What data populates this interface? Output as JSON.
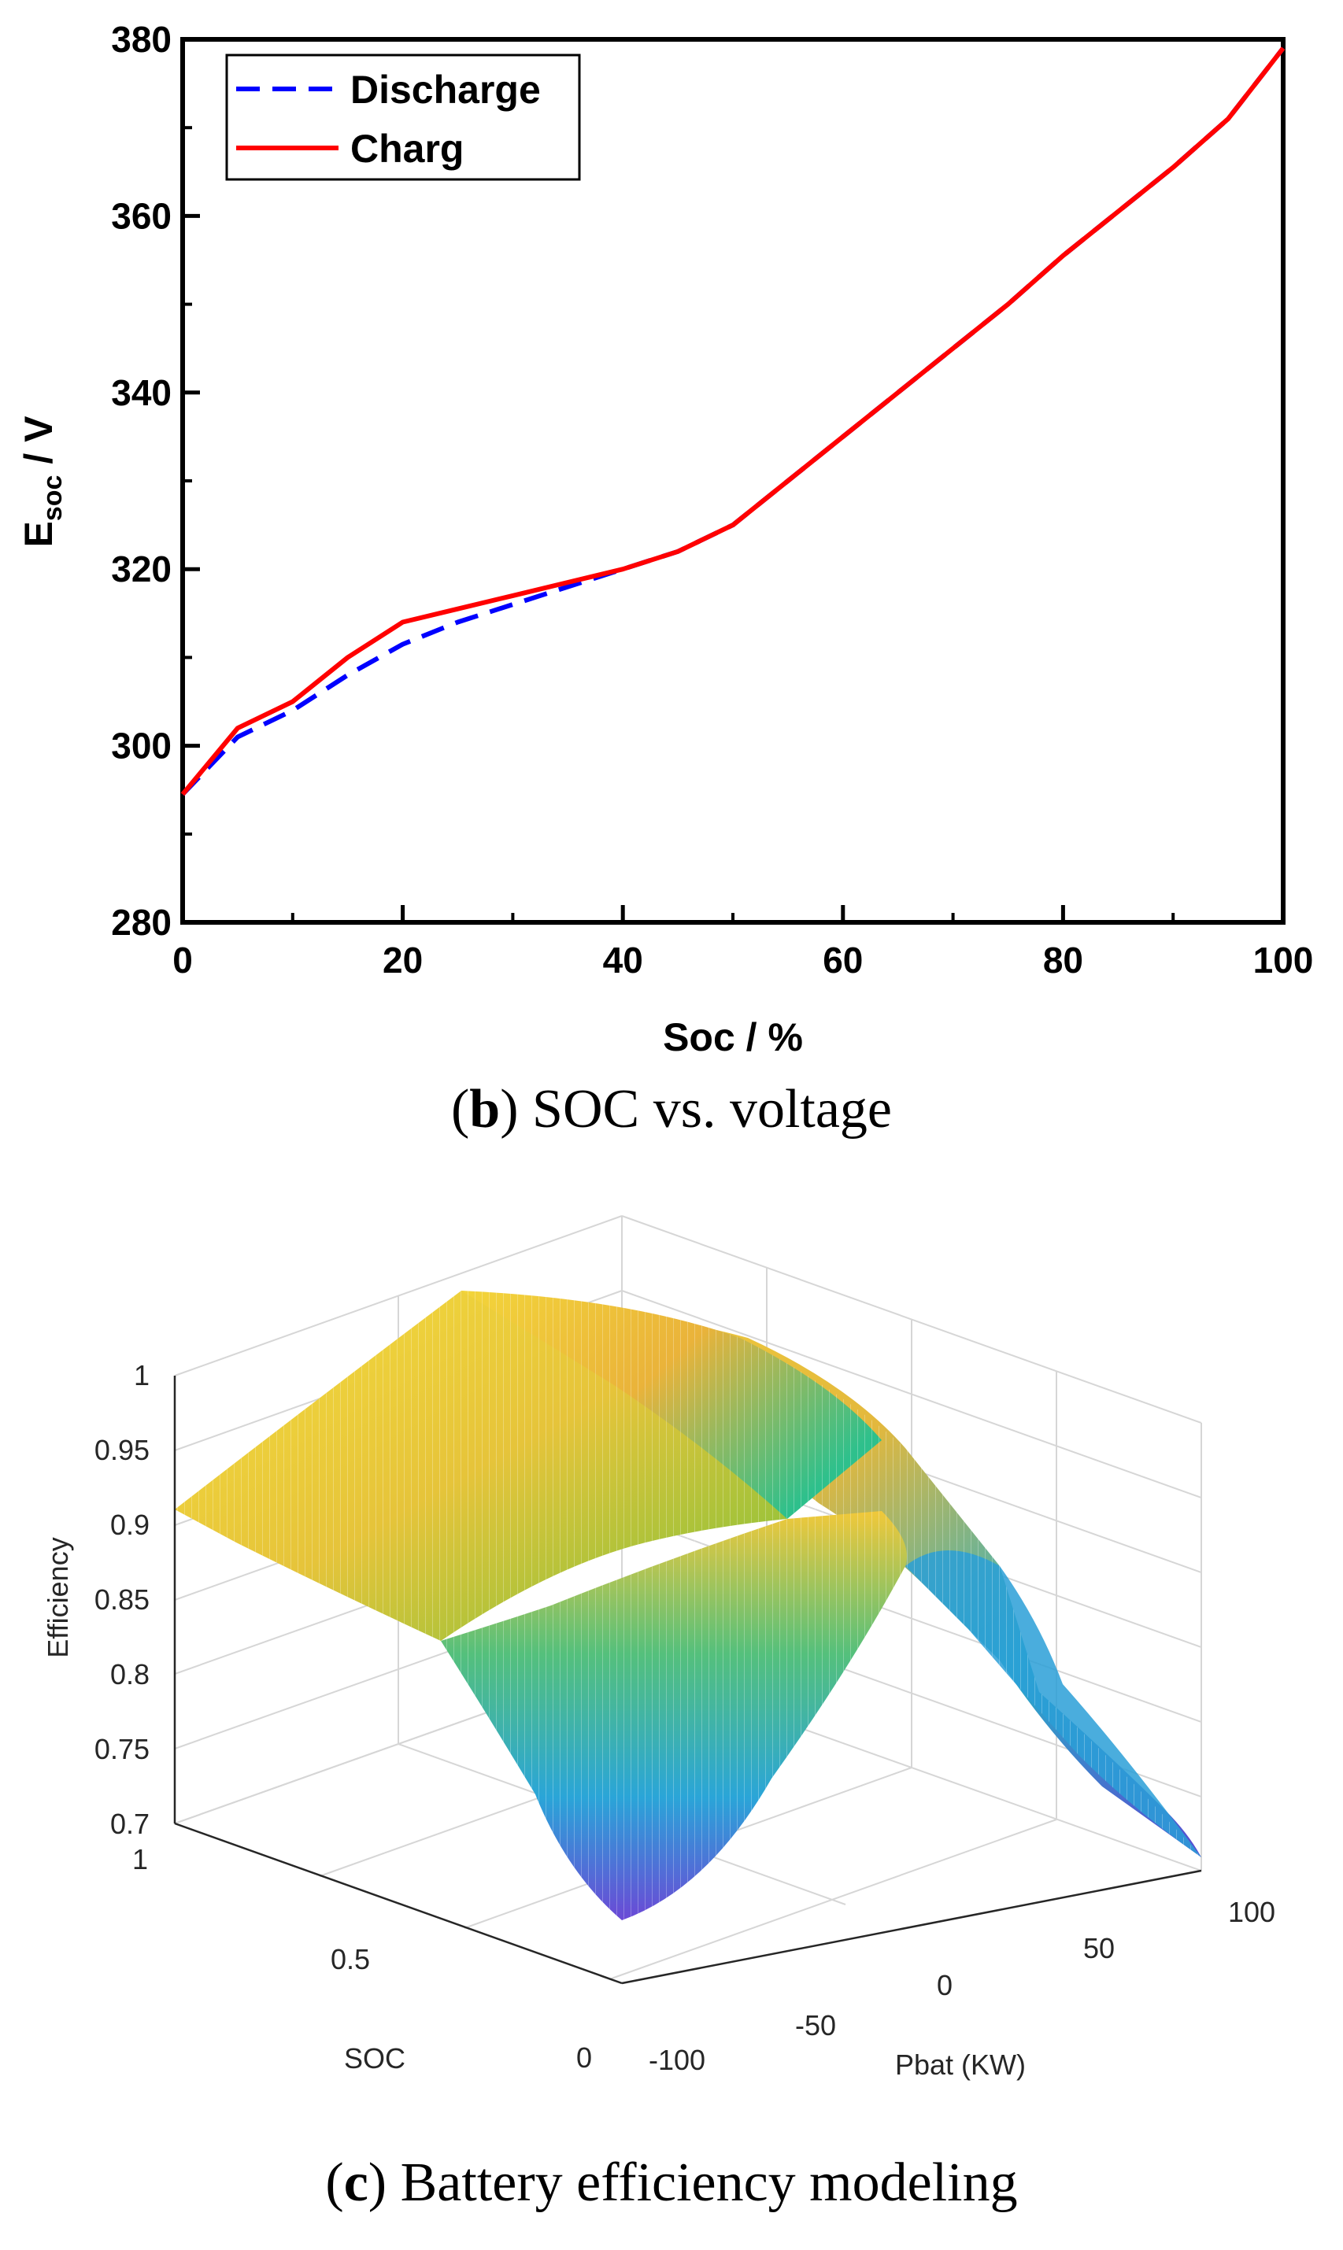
{
  "chart_data": [
    {
      "type": "line",
      "title": "",
      "xlabel": "Soc / %",
      "ylabel_main": "E",
      "ylabel_sub": "soc",
      "ylabel_unit": " / V",
      "xlim": [
        0,
        100
      ],
      "ylim": [
        280,
        380
      ],
      "xticks": [
        0,
        20,
        40,
        60,
        80,
        100
      ],
      "yticks": [
        280,
        300,
        320,
        340,
        360,
        380
      ],
      "legend_position": "top-left",
      "series": [
        {
          "name": "Discharge",
          "color": "#0000ff",
          "style": "dashed",
          "x": [
            0,
            5,
            10,
            15,
            20,
            25,
            30,
            35,
            40,
            45,
            50,
            55,
            60,
            65,
            70,
            75,
            80,
            85,
            90,
            95,
            100
          ],
          "y": [
            294.5,
            301,
            304,
            308,
            311.5,
            314,
            316,
            318,
            320,
            322,
            325,
            330,
            335,
            340,
            345,
            350,
            355.5,
            360.5,
            365.5,
            371,
            379
          ]
        },
        {
          "name": "Charg",
          "color": "#ff0000",
          "style": "solid",
          "x": [
            0,
            5,
            10,
            15,
            20,
            25,
            30,
            35,
            40,
            45,
            50,
            55,
            60,
            65,
            70,
            75,
            80,
            85,
            90,
            95,
            100
          ],
          "y": [
            294.5,
            302,
            305,
            310,
            314,
            315.5,
            317,
            318.5,
            320,
            322,
            325,
            330,
            335,
            340,
            345,
            350,
            355.5,
            360.5,
            365.5,
            371,
            379
          ]
        }
      ],
      "caption_prefix": "(",
      "caption_letter": "b",
      "caption_text": ") SOC vs. voltage"
    },
    {
      "type": "surface",
      "title": "",
      "xlabel": "Pbat (KW)",
      "ylabel": "SOC",
      "zlabel": "Efficiency",
      "xticks": [
        "-100",
        "-50",
        "0",
        "50",
        "100"
      ],
      "yticks": [
        "0",
        "0.5",
        "1"
      ],
      "zticks": [
        "0.7",
        "0.75",
        "0.8",
        "0.85",
        "0.9",
        "0.95",
        "1"
      ],
      "xlim": [
        -100,
        100
      ],
      "ylim": [
        0,
        1
      ],
      "zlim": [
        0.7,
        1
      ],
      "colormap": "parula",
      "caption_prefix": "(",
      "caption_letter": "c",
      "caption_text": ") Battery efficiency modeling"
    }
  ]
}
